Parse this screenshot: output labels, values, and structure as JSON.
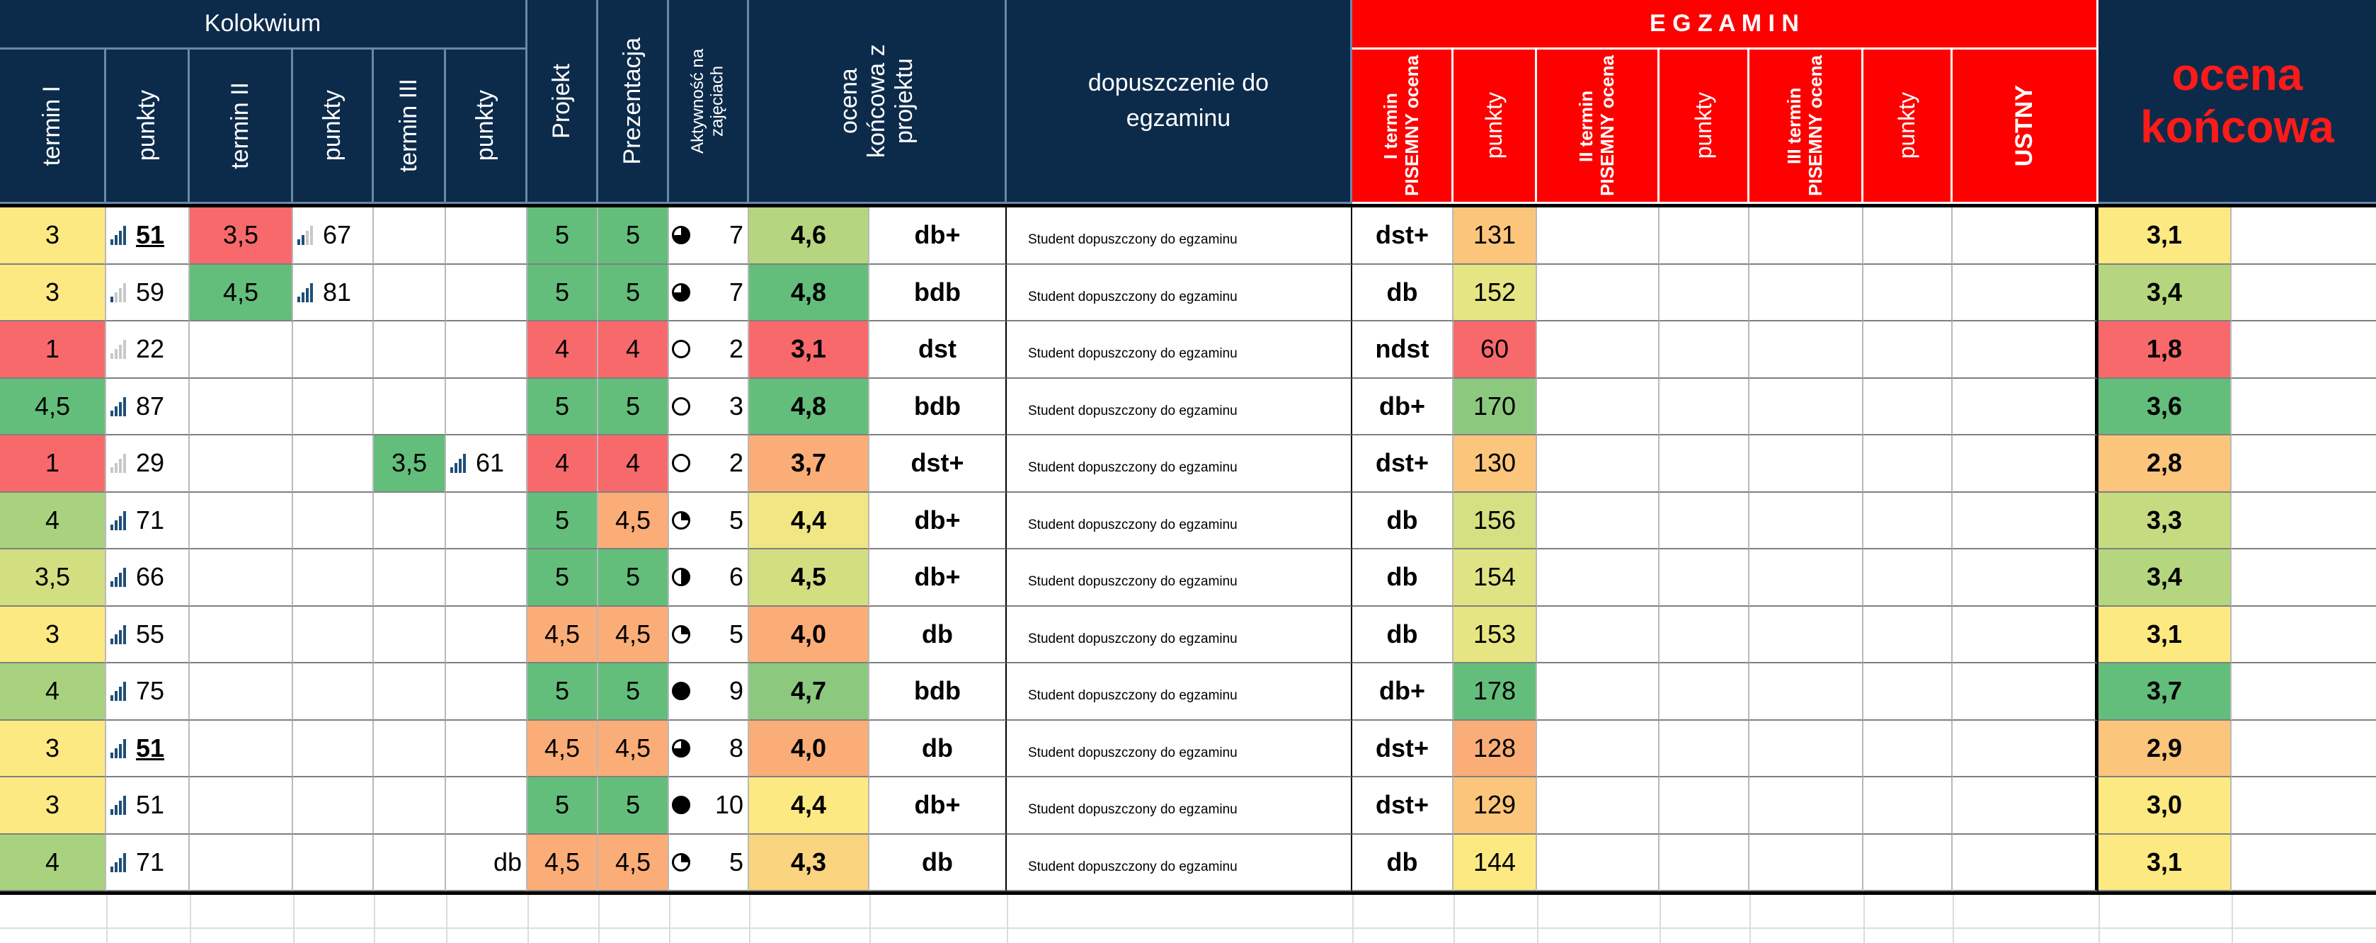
{
  "header": {
    "kolokwium": "Kolokwium",
    "termin1": "termin I",
    "punkty1": "punkty",
    "termin2": "termin II",
    "punkty2": "punkty",
    "termin3": "termin III",
    "punkty3": "punkty",
    "projekt": "Projekt",
    "prezentacja": "Prezentacja",
    "aktywnosc": "Aktywność na zajęciach",
    "ocena_koncowa_projekt": "ocena końcowa z projektu",
    "dopuszczenie": "dopuszczenie do egzaminu",
    "egzamin": "E G Z A M I N",
    "e1_ocena": "I termin PISEMNY ocena",
    "e1_punkty": "punkty",
    "e2_ocena": "II termin PISEMNY ocena",
    "e2_punkty": "punkty",
    "e3_ocena": "III termin PISEMNY ocena",
    "e3_punkty": "punkty",
    "ustny": "USTNY",
    "ocena_koncowa": "ocena końcowa"
  },
  "colors": {
    "header_navy": "#0c2b4b",
    "egzamin_red": "#ff0000",
    "green": "#63be7b",
    "light_green": "#b5d67e",
    "yellow": "#fde982",
    "orange": "#fbad78",
    "red": "#f8696b"
  },
  "rows": [
    {
      "t1": "3",
      "t1c": "#fde982",
      "p1": "51",
      "p1u": true,
      "p1b": 5,
      "t2": "3,5",
      "t2c": "#f8696b",
      "p2": "67",
      "p2b": 2,
      "t3": "",
      "t3c": "",
      "p3": "",
      "p3b": 0,
      "p3t": "",
      "proj": "5",
      "projc": "#63be7b",
      "prez": "5",
      "prezc": "#63be7b",
      "akt_icon": "three-quarter-circle-icon",
      "akt": "7",
      "okp": "4,6",
      "okpc": "#b5d67e",
      "okpw": "db+",
      "dop": "Student dopuszczony do egzaminu",
      "e1": "dst+",
      "e1p": "131",
      "e1pc": "#fbc57c",
      "ok": "3,1",
      "okc": "#fde982"
    },
    {
      "t1": "3",
      "t1c": "#fde982",
      "p1": "59",
      "p1u": false,
      "p1b": 1,
      "t2": "4,5",
      "t2c": "#63be7b",
      "p2": "81",
      "p2b": 5,
      "t3": "",
      "t3c": "",
      "p3": "",
      "p3b": 0,
      "p3t": "",
      "proj": "5",
      "projc": "#63be7b",
      "prez": "5",
      "prezc": "#63be7b",
      "akt_icon": "three-quarter-circle-icon",
      "akt": "7",
      "okp": "4,8",
      "okpc": "#63be7b",
      "okpw": "bdb",
      "dop": "Student dopuszczony do egzaminu",
      "e1": "db",
      "e1p": "152",
      "e1pc": "#e6e583",
      "ok": "3,4",
      "okc": "#b5d67e"
    },
    {
      "t1": "1",
      "t1c": "#f8696b",
      "p1": "22",
      "p1u": false,
      "p1b": 0,
      "t2": "",
      "t2c": "",
      "p2": "",
      "p2b": 0,
      "t3": "",
      "t3c": "",
      "p3": "",
      "p3b": 0,
      "p3t": "",
      "proj": "4",
      "projc": "#f8696b",
      "prez": "4",
      "prezc": "#f8696b",
      "akt_icon": "empty-circle-icon",
      "akt": "2",
      "okp": "3,1",
      "okpc": "#f8696b",
      "okpw": "dst",
      "dop": "Student dopuszczony do egzaminu",
      "e1": "ndst",
      "e1p": "60",
      "e1pc": "#f8696b",
      "ok": "1,8",
      "okc": "#f8696b"
    },
    {
      "t1": "4,5",
      "t1c": "#63be7b",
      "p1": "87",
      "p1u": false,
      "p1b": 5,
      "t2": "",
      "t2c": "",
      "p2": "",
      "p2b": 0,
      "t3": "",
      "t3c": "",
      "p3": "",
      "p3b": 0,
      "p3t": "",
      "proj": "5",
      "projc": "#63be7b",
      "prez": "5",
      "prezc": "#63be7b",
      "akt_icon": "empty-circle-icon",
      "akt": "3",
      "okp": "4,8",
      "okpc": "#63be7b",
      "okpw": "bdb",
      "dop": "Student dopuszczony do egzaminu",
      "e1": "db+",
      "e1p": "170",
      "e1pc": "#8cc97f",
      "ok": "3,6",
      "okc": "#63be7b"
    },
    {
      "t1": "1",
      "t1c": "#f8696b",
      "p1": "29",
      "p1u": false,
      "p1b": 0,
      "t2": "",
      "t2c": "",
      "p2": "",
      "p2b": 0,
      "t3": "3,5",
      "t3c": "#63be7b",
      "p3": "61",
      "p3b": 4,
      "p3t": "",
      "proj": "4",
      "projc": "#f8696b",
      "prez": "4",
      "prezc": "#f8696b",
      "akt_icon": "empty-circle-icon",
      "akt": "2",
      "okp": "3,7",
      "okpc": "#fbad78",
      "okpw": "dst+",
      "dop": "Student dopuszczony do egzaminu",
      "e1": "dst+",
      "e1p": "130",
      "e1pc": "#fbc57c",
      "ok": "2,8",
      "okc": "#fbc57c"
    },
    {
      "t1": "4",
      "t1c": "#a9d27f",
      "p1": "71",
      "p1u": false,
      "p1b": 4,
      "t2": "",
      "t2c": "",
      "p2": "",
      "p2b": 0,
      "t3": "",
      "t3c": "",
      "p3": "",
      "p3b": 0,
      "p3t": "",
      "proj": "5",
      "projc": "#63be7b",
      "prez": "4,5",
      "prezc": "#fbad78",
      "akt_icon": "quarter-circle-icon",
      "akt": "5",
      "okp": "4,4",
      "okpc": "#f0e784",
      "okpw": "db+",
      "dop": "Student dopuszczony do egzaminu",
      "e1": "db",
      "e1p": "156",
      "e1pc": "#d4e081",
      "ok": "3,3",
      "okc": "#c6db80"
    },
    {
      "t1": "3,5",
      "t1c": "#d2df81",
      "p1": "66",
      "p1u": false,
      "p1b": 4,
      "t2": "",
      "t2c": "",
      "p2": "",
      "p2b": 0,
      "t3": "",
      "t3c": "",
      "p3": "",
      "p3b": 0,
      "p3t": "",
      "proj": "5",
      "projc": "#63be7b",
      "prez": "5",
      "prezc": "#63be7b",
      "akt_icon": "half-circle-icon",
      "akt": "6",
      "okp": "4,5",
      "okpc": "#d2df81",
      "okpw": "db+",
      "dop": "Student dopuszczony do egzaminu",
      "e1": "db",
      "e1p": "154",
      "e1pc": "#e0e383",
      "ok": "3,4",
      "okc": "#b5d67e"
    },
    {
      "t1": "3",
      "t1c": "#fde982",
      "p1": "55",
      "p1u": false,
      "p1b": 4,
      "t2": "",
      "t2c": "",
      "p2": "",
      "p2b": 0,
      "t3": "",
      "t3c": "",
      "p3": "",
      "p3b": 0,
      "p3t": "",
      "proj": "4,5",
      "projc": "#fbad78",
      "prez": "4,5",
      "prezc": "#fbad78",
      "akt_icon": "quarter-circle-icon",
      "akt": "5",
      "okp": "4,0",
      "okpc": "#fbad78",
      "okpw": "db",
      "dop": "Student dopuszczony do egzaminu",
      "e1": "db",
      "e1p": "153",
      "e1pc": "#e6e583",
      "ok": "3,1",
      "okc": "#fde982"
    },
    {
      "t1": "4",
      "t1c": "#a9d27f",
      "p1": "75",
      "p1u": false,
      "p1b": 5,
      "t2": "",
      "t2c": "",
      "p2": "",
      "p2b": 0,
      "t3": "",
      "t3c": "",
      "p3": "",
      "p3b": 0,
      "p3t": "",
      "proj": "5",
      "projc": "#63be7b",
      "prez": "5",
      "prezc": "#63be7b",
      "akt_icon": "full-circle-icon",
      "akt": "9",
      "okp": "4,7",
      "okpc": "#8cc97f",
      "okpw": "bdb",
      "dop": "Student dopuszczony do egzaminu",
      "e1": "db+",
      "e1p": "178",
      "e1pc": "#63be7b",
      "ok": "3,7",
      "okc": "#63be7b"
    },
    {
      "t1": "3",
      "t1c": "#fde982",
      "p1": "51",
      "p1u": true,
      "p1b": 4,
      "t2": "",
      "t2c": "",
      "p2": "",
      "p2b": 0,
      "t3": "",
      "t3c": "",
      "p3": "",
      "p3b": 0,
      "p3t": "",
      "proj": "4,5",
      "projc": "#fbad78",
      "prez": "4,5",
      "prezc": "#fbad78",
      "akt_icon": "three-quarter-circle-icon",
      "akt": "8",
      "okp": "4,0",
      "okpc": "#fbad78",
      "okpw": "db",
      "dop": "Student dopuszczony do egzaminu",
      "e1": "dst+",
      "e1p": "128",
      "e1pc": "#fbad78",
      "ok": "2,9",
      "okc": "#fbc57c"
    },
    {
      "t1": "3",
      "t1c": "#fde982",
      "p1": "51",
      "p1u": false,
      "p1b": 4,
      "t2": "",
      "t2c": "",
      "p2": "",
      "p2b": 0,
      "t3": "",
      "t3c": "",
      "p3": "",
      "p3b": 0,
      "p3t": "",
      "proj": "5",
      "projc": "#63be7b",
      "prez": "5",
      "prezc": "#63be7b",
      "akt_icon": "full-circle-icon",
      "akt": "10",
      "okp": "4,4",
      "okpc": "#fde982",
      "okpw": "db+",
      "dop": "Student dopuszczony do egzaminu",
      "e1": "dst+",
      "e1p": "129",
      "e1pc": "#fbc57c",
      "ok": "3,0",
      "okc": "#fde982"
    },
    {
      "t1": "4",
      "t1c": "#a9d27f",
      "p1": "71",
      "p1u": false,
      "p1b": 4,
      "t2": "",
      "t2c": "",
      "p2": "",
      "p2b": 0,
      "t3": "",
      "t3c": "",
      "p3": "",
      "p3b": 0,
      "p3t": "db",
      "proj": "4,5",
      "projc": "#fbad78",
      "prez": "4,5",
      "prezc": "#fbad78",
      "akt_icon": "quarter-circle-icon",
      "akt": "5",
      "okp": "4,3",
      "okpc": "#fbd480",
      "okpw": "db",
      "dop": "Student dopuszczony do egzaminu",
      "e1": "db",
      "e1p": "144",
      "e1pc": "#fde982",
      "ok": "3,1",
      "okc": "#fde982"
    }
  ]
}
